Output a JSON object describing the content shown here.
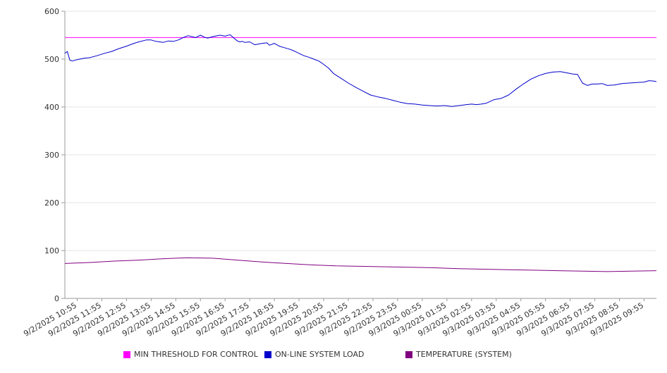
{
  "chart_data": {
    "type": "line",
    "title": "",
    "xlabel": "",
    "ylabel": "",
    "ylim": [
      0,
      600
    ],
    "y_ticks": [
      "0",
      "100",
      "200",
      "300",
      "400",
      "500",
      "600"
    ],
    "x_tick_labels": [
      "9/2/2025 10:55",
      "9/2/2025 11:55",
      "9/2/2025 12:55",
      "9/2/2025 13:55",
      "9/2/2025 14:55",
      "9/2/2025 15:55",
      "9/2/2025 16:55",
      "9/2/2025 17:55",
      "9/2/2025 18:55",
      "9/2/2025 19:55",
      "9/2/2025 20:55",
      "9/2/2025 21:55",
      "9/2/2025 22:55",
      "9/2/2025 23:55",
      "9/3/2025 00:55",
      "9/3/2025 01:55",
      "9/3/2025 02:55",
      "9/3/2025 03:55",
      "9/3/2025 04:55",
      "9/3/2025 05:55",
      "9/3/2025 06:55",
      "9/3/2025 07:55",
      "9/3/2025 08:55",
      "9/3/2025 09:55"
    ],
    "x_range_hours": [
      0,
      24
    ],
    "grid": "horizontal",
    "legend_position": "bottom",
    "series": [
      {
        "name": "MIN THRESHOLD FOR CONTROL",
        "color": "#ff00ff",
        "x": [
          0,
          24
        ],
        "values": [
          545,
          545
        ]
      },
      {
        "name": "ON-LINE SYSTEM LOAD",
        "color": "#0000cc",
        "x": [
          0,
          0.1,
          0.2,
          0.3,
          0.5,
          0.8,
          1.0,
          1.3,
          1.6,
          1.9,
          2.2,
          2.5,
          2.8,
          3.0,
          3.3,
          3.5,
          3.7,
          4.0,
          4.2,
          4.4,
          4.6,
          4.8,
          5.0,
          5.3,
          5.5,
          5.7,
          5.8,
          6.0,
          6.3,
          6.5,
          6.7,
          6.9,
          7.0,
          7.1,
          7.2,
          7.3,
          7.5,
          7.7,
          8.0,
          8.2,
          8.3,
          8.5,
          8.7,
          8.9,
          9.1,
          9.3,
          9.5,
          9.7,
          9.9,
          10.1,
          10.3,
          10.5,
          10.7,
          10.9,
          11.2,
          11.5,
          11.8,
          12.1,
          12.4,
          12.7,
          13.0,
          13.3,
          13.6,
          13.9,
          14.2,
          14.5,
          14.8,
          15.1,
          15.4,
          15.7,
          16.0,
          16.3,
          16.5,
          16.7,
          16.9,
          17.1,
          17.4,
          17.7,
          18.0,
          18.3,
          18.6,
          18.9,
          19.2,
          19.5,
          19.8,
          20.1,
          20.4,
          20.6,
          20.8,
          21.0,
          21.2,
          21.4,
          21.6,
          21.8,
          22.0,
          22.3,
          22.6,
          22.9,
          23.2,
          23.5,
          23.7,
          23.9,
          24.0
        ],
        "values": [
          512,
          516,
          498,
          496,
          499,
          502,
          503,
          507,
          512,
          516,
          522,
          527,
          533,
          536,
          540,
          540,
          537,
          535,
          538,
          537,
          540,
          545,
          549,
          545,
          550,
          545,
          544,
          547,
          550,
          548,
          551,
          542,
          538,
          536,
          537,
          535,
          536,
          530,
          533,
          534,
          529,
          533,
          527,
          524,
          521,
          517,
          512,
          507,
          504,
          500,
          496,
          489,
          481,
          470,
          460,
          450,
          441,
          433,
          425,
          421,
          418,
          414,
          410,
          407,
          406,
          404,
          403,
          402,
          403,
          401,
          403,
          405,
          406,
          405,
          406,
          408,
          415,
          418,
          425,
          437,
          448,
          458,
          465,
          470,
          473,
          474,
          471,
          469,
          468,
          450,
          445,
          448,
          448,
          449,
          445,
          446,
          449,
          450,
          451,
          452,
          455,
          454,
          453
        ]
      },
      {
        "name": "TEMPERATURE (SYSTEM)",
        "color": "#800080",
        "x": [
          0,
          1,
          2,
          3,
          4,
          5,
          6,
          7,
          8,
          9,
          10,
          11,
          12,
          13,
          14,
          15,
          16,
          17,
          18,
          19,
          20,
          21,
          22,
          23,
          24
        ],
        "values": [
          73,
          75,
          78,
          80,
          83,
          85,
          84,
          80,
          76,
          73,
          70,
          68,
          67,
          66,
          65,
          64,
          62,
          61,
          60,
          59,
          58,
          57,
          56,
          57,
          58
        ]
      }
    ]
  }
}
